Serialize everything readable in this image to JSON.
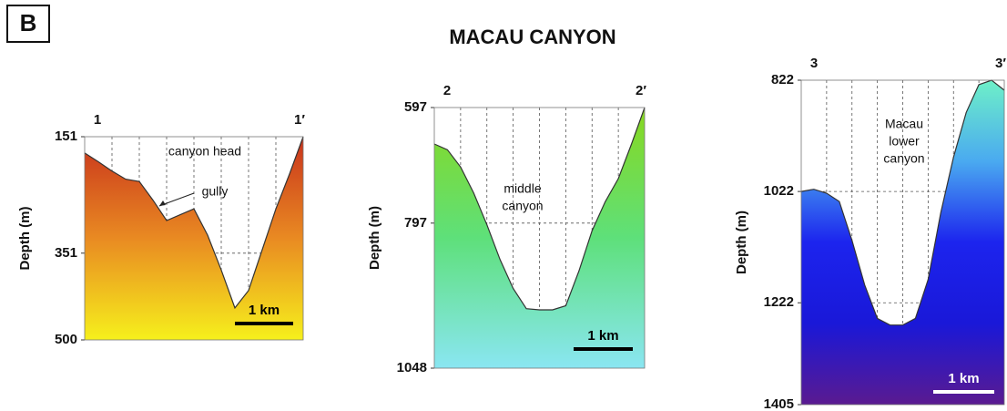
{
  "panel_label": "B",
  "title": "MACAU CANYON",
  "chart_data": [
    {
      "type": "area",
      "ylabel": "Depth (m)",
      "left_label": "1",
      "right_label": "1′",
      "annotations": [
        [
          "canyon head"
        ],
        [
          "gully"
        ]
      ],
      "scale_bar_label": "1 km",
      "ylim": [
        151,
        500
      ],
      "yticks": [
        151,
        351,
        500
      ],
      "grid": true,
      "colors": [
        "#c8321c",
        "#e98a22",
        "#f6f01c"
      ],
      "values": [
        179,
        194,
        210,
        224,
        228,
        260,
        295,
        285,
        275,
        320,
        380,
        445,
        415,
        345,
        275,
        215,
        151
      ]
    },
    {
      "type": "area",
      "ylabel": "Depth (m)",
      "left_label": "2",
      "right_label": "2′",
      "annotations": [
        [
          "middle",
          "canyon"
        ]
      ],
      "scale_bar_label": "1 km",
      "ylim": [
        597,
        1048
      ],
      "yticks": [
        597,
        797,
        1048
      ],
      "grid": true,
      "colors": [
        "#88d81e",
        "#5ee07a",
        "#8ae6f2"
      ],
      "values": [
        660,
        670,
        700,
        745,
        800,
        860,
        910,
        945,
        947,
        947,
        940,
        880,
        810,
        760,
        720,
        660,
        597
      ]
    },
    {
      "type": "area",
      "ylabel": "Depth (m)",
      "left_label": "3",
      "right_label": "3′",
      "annotations": [
        [
          "Macau",
          "lower",
          "canyon"
        ]
      ],
      "scale_bar_label": "1 km",
      "ylim": [
        822,
        1405
      ],
      "yticks": [
        822,
        1022,
        1222,
        1405
      ],
      "grid": true,
      "colors": [
        "#6ef0c8",
        "#4aaaf0",
        "#1c24ee",
        "#1a18d8",
        "#5a1a90"
      ],
      "values": [
        1022,
        1018,
        1025,
        1040,
        1110,
        1190,
        1250,
        1262,
        1262,
        1250,
        1180,
        1060,
        960,
        880,
        830,
        822,
        840
      ]
    }
  ]
}
